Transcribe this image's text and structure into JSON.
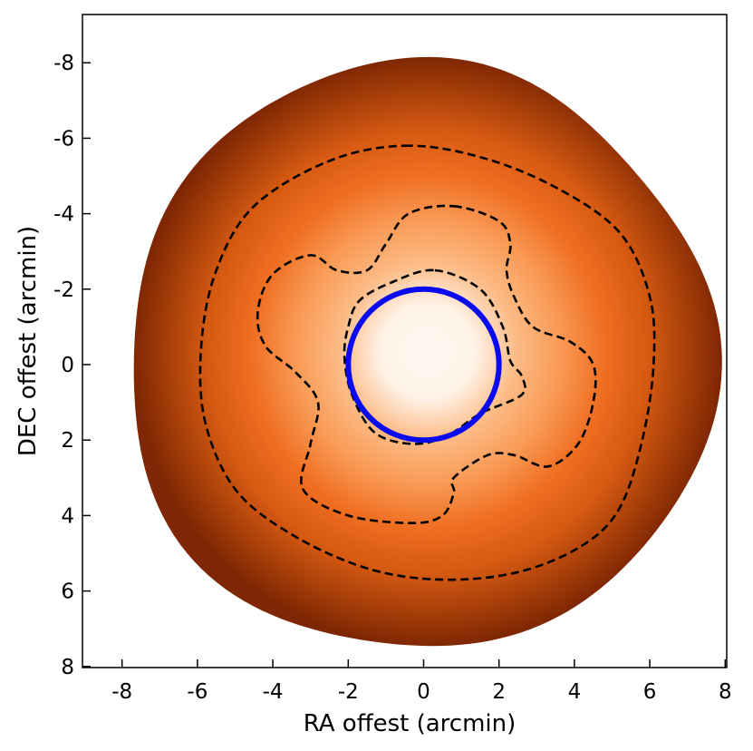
{
  "chart_data": {
    "type": "heatmap",
    "title": "",
    "xlabel": "RA offest (arcmin)",
    "ylabel": "DEC offest (arcmin)",
    "xlim": [
      -9.1,
      8.1
    ],
    "ylim": [
      8.1,
      -9.3
    ],
    "y_inverted": true,
    "grid": false,
    "colormap": "Oranges",
    "x_ticks": [
      -8,
      -6,
      -4,
      -2,
      0,
      2,
      4,
      6,
      8
    ],
    "y_ticks": [
      -8,
      -6,
      -4,
      -2,
      0,
      2,
      4,
      6,
      8
    ],
    "x_tick_labels": [
      "-8",
      "-6",
      "-4",
      "-2",
      "0",
      "2",
      "4",
      "6",
      "8"
    ],
    "y_tick_labels": [
      "-8",
      "-6",
      "-4",
      "-2",
      "0",
      "2",
      "4",
      "6",
      "8"
    ],
    "map_extent_radius": 7.8,
    "contours": [
      {
        "style": "dashed",
        "color": "#000000",
        "points": [
          [
            -0.5,
            -5.8
          ],
          [
            1.5,
            -5.5
          ],
          [
            3.5,
            -4.7
          ],
          [
            5.2,
            -3.5
          ],
          [
            6.0,
            -1.8
          ],
          [
            6.1,
            0.0
          ],
          [
            5.8,
            2.0
          ],
          [
            5.2,
            3.8
          ],
          [
            4.2,
            4.8
          ],
          [
            2.5,
            5.5
          ],
          [
            0.5,
            5.7
          ],
          [
            -1.5,
            5.4
          ],
          [
            -3.5,
            4.5
          ],
          [
            -5.0,
            3.3
          ],
          [
            -5.8,
            1.5
          ],
          [
            -5.9,
            -0.5
          ],
          [
            -5.5,
            -2.5
          ],
          [
            -4.5,
            -4.2
          ],
          [
            -2.5,
            -5.4
          ],
          [
            -0.5,
            -5.8
          ]
        ]
      },
      {
        "style": "dashed",
        "color": "#000000",
        "points": [
          [
            0.8,
            -4.2
          ],
          [
            2.0,
            -3.8
          ],
          [
            2.3,
            -3.2
          ],
          [
            2.2,
            -2.5
          ],
          [
            2.4,
            -1.8
          ],
          [
            2.9,
            -1.0
          ],
          [
            3.9,
            -0.6
          ],
          [
            4.5,
            0.0
          ],
          [
            4.5,
            1.0
          ],
          [
            4.1,
            2.1
          ],
          [
            3.3,
            2.7
          ],
          [
            2.4,
            2.4
          ],
          [
            1.7,
            2.4
          ],
          [
            0.8,
            3.0
          ],
          [
            0.8,
            3.4
          ],
          [
            0.5,
            4.0
          ],
          [
            -0.3,
            4.2
          ],
          [
            -2.0,
            4.0
          ],
          [
            -3.2,
            3.3
          ],
          [
            -3.0,
            2.1
          ],
          [
            -2.8,
            1.0
          ],
          [
            -3.4,
            0.2
          ],
          [
            -4.2,
            -0.5
          ],
          [
            -4.4,
            -1.4
          ],
          [
            -4.0,
            -2.4
          ],
          [
            -3.0,
            -2.9
          ],
          [
            -2.3,
            -2.5
          ],
          [
            -1.5,
            -2.5
          ],
          [
            -1.0,
            -3.2
          ],
          [
            -0.4,
            -4.0
          ],
          [
            0.8,
            -4.2
          ]
        ]
      },
      {
        "style": "dashed",
        "color": "#000000",
        "points": [
          [
            0.3,
            -2.5
          ],
          [
            1.5,
            -2.0
          ],
          [
            2.1,
            -1.0
          ],
          [
            2.3,
            -0.1
          ],
          [
            2.6,
            0.3
          ],
          [
            2.6,
            0.8
          ],
          [
            1.5,
            1.3
          ],
          [
            0.6,
            1.9
          ],
          [
            -0.3,
            2.1
          ],
          [
            -1.3,
            1.8
          ],
          [
            -1.9,
            0.8
          ],
          [
            -2.1,
            -0.2
          ],
          [
            -2.0,
            -1.0
          ],
          [
            -1.7,
            -1.7
          ],
          [
            -0.8,
            -2.2
          ],
          [
            0.3,
            -2.5
          ]
        ]
      }
    ],
    "circle": {
      "cx": 0.0,
      "cy": 0.0,
      "r": 2.0,
      "color": "#0a0af0"
    }
  }
}
